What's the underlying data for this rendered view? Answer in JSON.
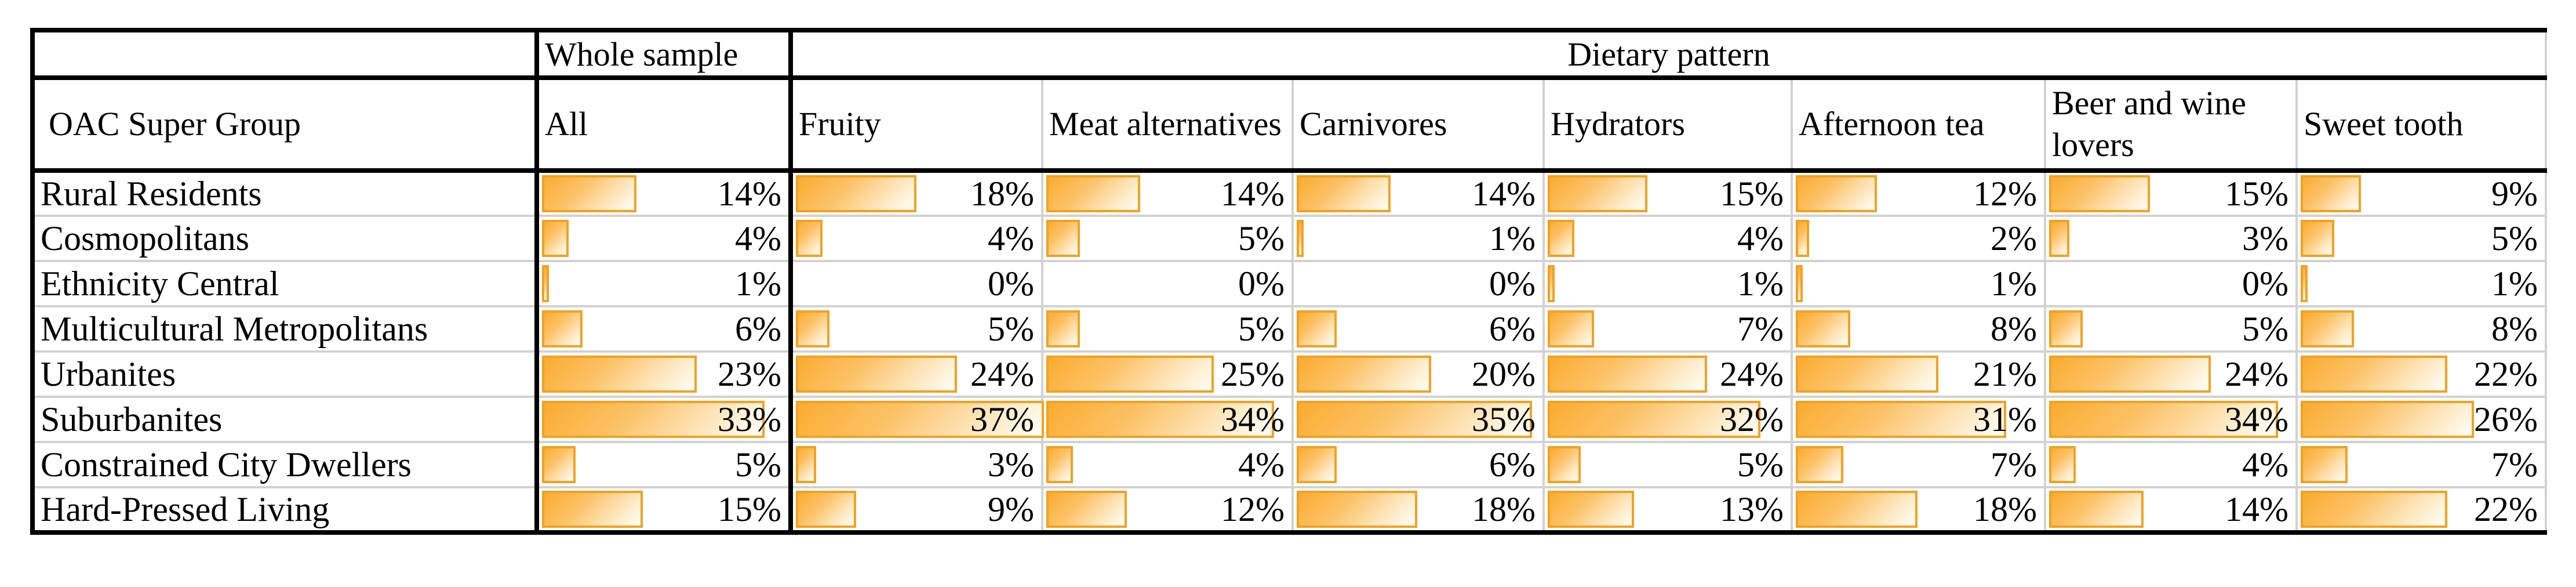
{
  "chart_data": {
    "type": "table",
    "title": "",
    "group_headers": {
      "whole_sample": "Whole sample",
      "dietary_pattern": "Dietary pattern"
    },
    "row_header": "OAC Super Group",
    "columns": [
      "All",
      "Fruity",
      "Meat alternatives",
      "Carnivores",
      "Hydrators",
      "Afternoon tea",
      "Beer and wine lovers",
      "Sweet tooth"
    ],
    "rows": [
      "Rural Residents",
      "Cosmopolitans",
      "Ethnicity Central",
      "Multicultural Metropolitans",
      "Urbanites",
      "Suburbanites",
      "Constrained City Dwellers",
      "Hard-Pressed Living"
    ],
    "values_pct": [
      [
        14,
        18,
        14,
        14,
        15,
        12,
        15,
        9
      ],
      [
        4,
        4,
        5,
        1,
        4,
        2,
        3,
        5
      ],
      [
        1,
        0,
        0,
        0,
        1,
        1,
        0,
        1
      ],
      [
        6,
        5,
        5,
        6,
        7,
        8,
        5,
        8
      ],
      [
        23,
        24,
        25,
        20,
        24,
        21,
        24,
        22
      ],
      [
        33,
        37,
        34,
        35,
        32,
        31,
        34,
        26
      ],
      [
        5,
        3,
        4,
        6,
        5,
        7,
        4,
        7
      ],
      [
        15,
        9,
        12,
        18,
        13,
        18,
        14,
        22
      ]
    ],
    "value_suffix": "%",
    "bar_style": {
      "scale_max_pct": 37,
      "border_color": "#F4A11F",
      "fill_start": "#FBAC30",
      "fill_mid": "#FCC266",
      "fill_end": "#FFFEF9"
    },
    "grid_style": {
      "thick_border_color": "#000000",
      "thin_border_color": "#D2D2D2"
    },
    "legend_position": "none",
    "grid": "table-borders"
  }
}
